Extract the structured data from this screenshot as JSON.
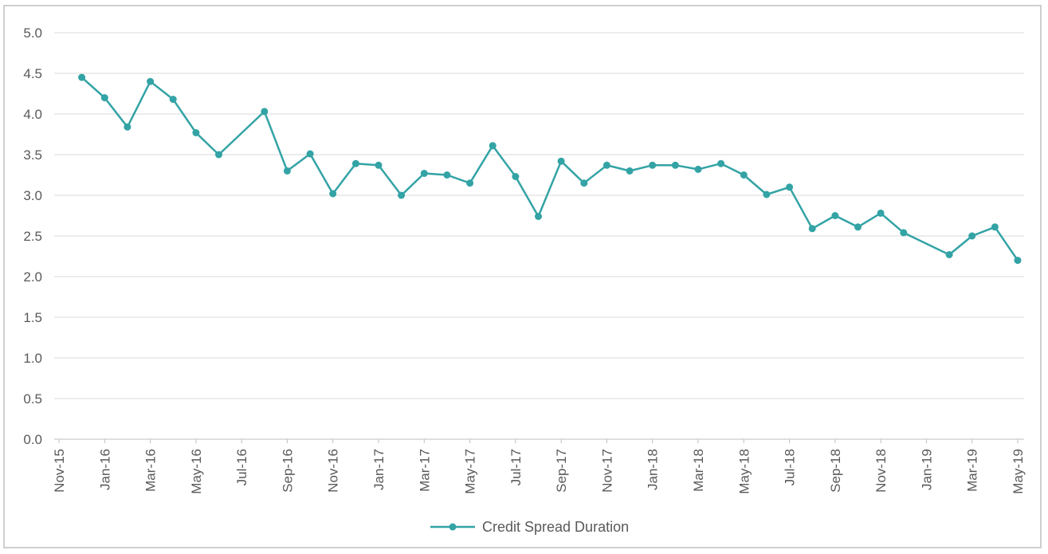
{
  "chart_data": {
    "type": "line",
    "title": "",
    "xlabel": "",
    "ylabel": "",
    "ylim": [
      0,
      5
    ],
    "yticks": [
      "0.0",
      "0.5",
      "1.0",
      "1.5",
      "2.0",
      "2.5",
      "3.0",
      "3.5",
      "4.0",
      "4.5",
      "5.0"
    ],
    "xlim": [
      "2015-11",
      "2019-05"
    ],
    "xtick_labels": [
      "Nov-15",
      "Jan-16",
      "Mar-16",
      "May-16",
      "Jul-16",
      "Sep-16",
      "Nov-16",
      "Jan-17",
      "Mar-17",
      "May-17",
      "Jul-17",
      "Sep-17",
      "Nov-17",
      "Jan-18",
      "Mar-18",
      "May-18",
      "Jul-18",
      "Sep-18",
      "Nov-18",
      "Jan-19",
      "Mar-19",
      "May-19"
    ],
    "grid": "horizontal",
    "legend_position": "bottom-center",
    "line_color": "#33A3A5",
    "series": [
      {
        "name": "Credit Spread Duration",
        "x": [
          "2015-12-01",
          "2016-01-01",
          "2016-02-01",
          "2016-03-01",
          "2016-04-01",
          "2016-05-01",
          "2016-06-01",
          "2016-08-01",
          "2016-09-01",
          "2016-10-01",
          "2016-11-01",
          "2016-12-01",
          "2017-01-01",
          "2017-02-01",
          "2017-03-01",
          "2017-04-01",
          "2017-05-01",
          "2017-06-01",
          "2017-07-01",
          "2017-08-01",
          "2017-09-01",
          "2017-10-01",
          "2017-11-01",
          "2017-12-01",
          "2018-01-01",
          "2018-02-01",
          "2018-03-01",
          "2018-04-01",
          "2018-05-01",
          "2018-06-01",
          "2018-07-01",
          "2018-08-01",
          "2018-09-01",
          "2018-10-01",
          "2018-11-01",
          "2018-12-01",
          "2019-02-01",
          "2019-03-01",
          "2019-04-01",
          "2019-05-01"
        ],
        "values": [
          4.45,
          4.2,
          3.84,
          4.4,
          4.18,
          3.77,
          3.5,
          4.03,
          3.3,
          3.51,
          3.02,
          3.39,
          3.37,
          3.0,
          3.27,
          3.25,
          3.15,
          3.61,
          3.23,
          2.74,
          3.42,
          3.15,
          3.37,
          3.3,
          3.37,
          3.37,
          3.32,
          3.39,
          3.25,
          3.01,
          3.1,
          2.59,
          2.75,
          2.61,
          2.78,
          2.54,
          2.27,
          2.5,
          2.61,
          2.2
        ]
      }
    ]
  }
}
